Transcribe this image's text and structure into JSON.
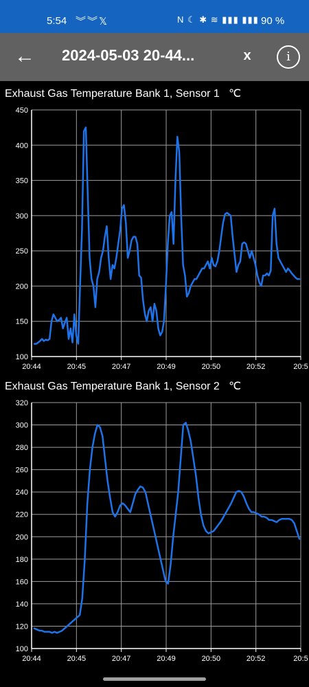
{
  "status_bar": {
    "time": "5:54",
    "notification_icons": [
      "wavy-icon",
      "wavy-icon",
      "x-icon"
    ],
    "notif_glyphs": "︾︾𝕏",
    "system_glyphs": "N ☾ ✱ ≋ ▮▮▮ ▮▮▮",
    "battery": "90 %"
  },
  "app_bar": {
    "back_glyph": "←",
    "title": "2024-05-03 20-44...",
    "close_label": "x",
    "info_glyph": "i"
  },
  "colors": {
    "line": "#1e73e8",
    "appbar": "#616161",
    "statusbar": "#1565c0",
    "grid": "#9e9e9e"
  },
  "chart_data": [
    {
      "type": "line",
      "title": "Exhaust Gas Temperature Bank 1, Sensor 1",
      "unit": "℃",
      "x_tick_labels": [
        "20:44",
        "20:45",
        "20:47",
        "20:49",
        "20:50",
        "20:52",
        "20:5"
      ],
      "ylim": [
        100,
        450
      ],
      "y_ticks": [
        100,
        150,
        200,
        250,
        300,
        350,
        400,
        450
      ],
      "grid": true,
      "series": [
        {
          "values": [
            118,
            118,
            120,
            122,
            125,
            122,
            124,
            123,
            125,
            150,
            160,
            155,
            150,
            152,
            155,
            140,
            148,
            155,
            125,
            140,
            120,
            160,
            130,
            118,
            200,
            280,
            420,
            425,
            330,
            240,
            210,
            200,
            170,
            210,
            220,
            240,
            250,
            270,
            285,
            240,
            210,
            230,
            225,
            240,
            260,
            280,
            310,
            315,
            290,
            240,
            250,
            265,
            270,
            270,
            260,
            215,
            212,
            180,
            160,
            150,
            165,
            170,
            150,
            175,
            165,
            140,
            130,
            135,
            150,
            200,
            260,
            300,
            305,
            260,
            350,
            412,
            390,
            300,
            230,
            215,
            185,
            190,
            200,
            205,
            210,
            210,
            215,
            220,
            225,
            225,
            230,
            235,
            225,
            240,
            230,
            228,
            235,
            250,
            270,
            290,
            302,
            304,
            302,
            300,
            270,
            245,
            220,
            230,
            235,
            260,
            262,
            260,
            250,
            240,
            250,
            240,
            230,
            215,
            205,
            200,
            215,
            215,
            218,
            215,
            222,
            300,
            310,
            260,
            240,
            235,
            230,
            225,
            220,
            225,
            222,
            218,
            215,
            212,
            210,
            210
          ]
        }
      ]
    },
    {
      "type": "line",
      "title": "Exhaust Gas Temperature Bank 1, Sensor 2",
      "unit": "℃",
      "x_tick_labels": [
        "20:44",
        "20:45",
        "20:47",
        "20:49",
        "20:50",
        "20:52",
        "20:5"
      ],
      "ylim": [
        100,
        320
      ],
      "y_ticks": [
        100,
        120,
        140,
        160,
        180,
        200,
        220,
        240,
        260,
        280,
        300,
        320
      ],
      "grid": true,
      "series": [
        {
          "values": [
            118,
            117,
            116,
            116,
            115,
            115,
            115,
            114,
            115,
            114,
            115,
            116,
            118,
            120,
            122,
            124,
            126,
            128,
            130,
            145,
            180,
            230,
            260,
            280,
            292,
            300,
            298,
            290,
            270,
            250,
            235,
            222,
            218,
            222,
            228,
            230,
            228,
            225,
            222,
            230,
            238,
            242,
            245,
            244,
            240,
            230,
            220,
            210,
            200,
            190,
            180,
            170,
            160,
            158,
            175,
            200,
            220,
            240,
            270,
            300,
            302,
            295,
            285,
            270,
            255,
            235,
            220,
            210,
            205,
            203,
            204,
            205,
            208,
            211,
            214,
            218,
            222,
            226,
            230,
            235,
            240,
            241,
            240,
            236,
            230,
            225,
            222,
            222,
            221,
            220,
            218,
            218,
            217,
            215,
            215,
            214,
            213,
            215,
            216,
            216,
            216,
            216,
            215,
            212,
            205,
            198
          ]
        }
      ]
    }
  ]
}
